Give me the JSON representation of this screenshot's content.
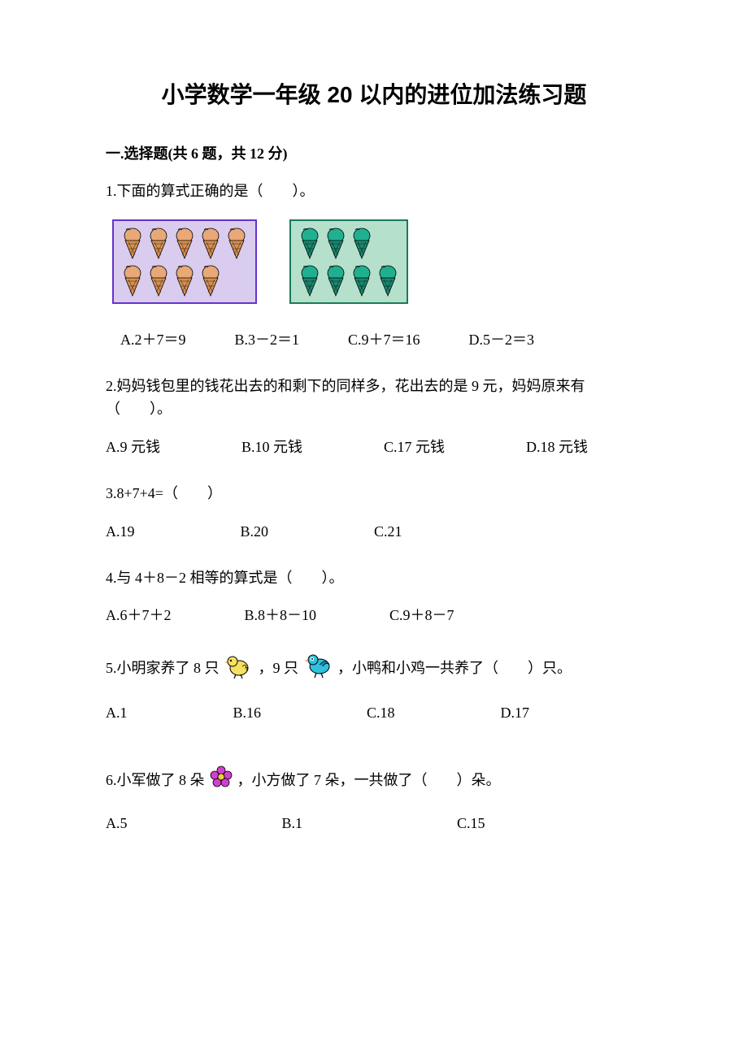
{
  "title": "小学数学一年级 20 以内的进位加法练习题",
  "section1": {
    "header": "一.选择题(共 6 题，共 12 分)",
    "q1": {
      "text": "1.下面的算式正确的是（　　）。",
      "box1": {
        "border": "#6633cc",
        "bg": "#d9ccee",
        "scoop": "#e8a878",
        "cone": "#d89050",
        "rows": [
          5,
          4
        ]
      },
      "box2": {
        "border": "#1a7a5a",
        "bg": "#b5e0cc",
        "scoop": "#20b090",
        "cone": "#1a8870",
        "rows": [
          3,
          4
        ]
      },
      "options": {
        "a": "A.2＋7＝9",
        "b": "B.3－2＝1",
        "c": "C.9＋7＝16",
        "d": "D.5－2＝3"
      }
    },
    "q2": {
      "text": "2.妈妈钱包里的钱花出去的和剩下的同样多，花出去的是 9 元，妈妈原来有（　　）。",
      "options": {
        "a": "A.9 元钱",
        "b": "B.10 元钱",
        "c": "C.17 元钱",
        "d": "D.18 元钱"
      }
    },
    "q3": {
      "text": "3.8+7+4=（　　）",
      "options": {
        "a": "A.19",
        "b": "B.20",
        "c": "C.21"
      }
    },
    "q4": {
      "text": "4.与 4＋8－2 相等的算式是（　　）。",
      "options": {
        "a": "A.6＋7＋2",
        "b": "B.8＋8－10",
        "c": "C.9＋8－7"
      }
    },
    "q5": {
      "pre": "5.小明家养了 8 只",
      "mid1": "，9 只",
      "mid2": "，小鸭和小鸡一共养了（　　）只。",
      "chick_color": "#f5e060",
      "bird_color": "#30c0e0",
      "options": {
        "a": "A.1",
        "b": "B.16",
        "c": "C.18",
        "d": "D.17"
      }
    },
    "q6": {
      "pre": "6.小军做了 8 朵",
      "post": "，小方做了 7 朵，一共做了（　　）朵。",
      "flower_color": "#d040d0",
      "flower_center": "#f0d030",
      "options": {
        "a": "A.5",
        "b": "B.1",
        "c": "C.15"
      }
    }
  }
}
